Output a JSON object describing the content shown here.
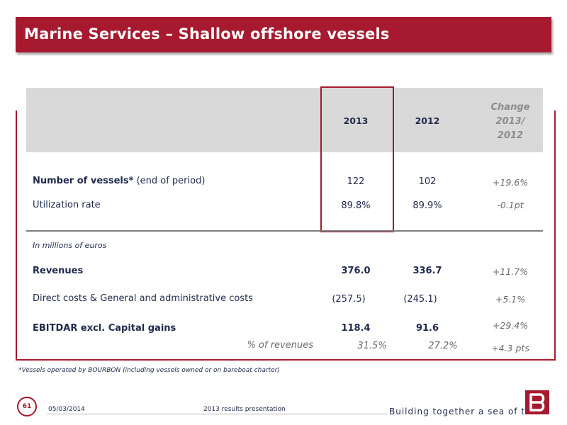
{
  "title": "Marine Services – Shallow offshore vessels",
  "table": {
    "header": {
      "col1": "2013",
      "col2": "2012",
      "change_lines": [
        "Change",
        "2013/",
        "2012"
      ]
    },
    "rows": [
      {
        "label": "Number of vessels*",
        "label_suffix": " (end of period)",
        "v2013": "122",
        "v2012": "102",
        "change": "+19.6%"
      },
      {
        "label": "Utilization rate",
        "v2013": "89.8%",
        "v2012": "89.9%",
        "change": "-0.1pt"
      }
    ],
    "unit_note": "In millions of euros",
    "financial_rows": [
      {
        "label": "Revenues",
        "v2013": "376.0",
        "v2012": "336.7",
        "change": "+11.7%"
      },
      {
        "label": "Direct costs & General and administrative costs",
        "v2013": "(257.5)",
        "v2012": "(245.1)",
        "change": "+5.1%"
      },
      {
        "label": "EBITDAR excl. Capital gains",
        "v2013": "118.4",
        "v2012": "91.6",
        "change": "+29.4%"
      },
      {
        "label": "% of revenues",
        "v2013": "31.5%",
        "v2012": "27.2%",
        "change": "+4.3 pts"
      }
    ]
  },
  "footnote": "*Vessels operated by BOURBON (including vessels owned or on bareboat charter)",
  "footer": {
    "page": "61",
    "date": "05/03/2014",
    "presentation": "2013 results presentation",
    "slogan": "Building together a sea of trust"
  },
  "colors": {
    "accent": "#a6192e",
    "text": "#1f2a4d",
    "muted": "#6b6b6b",
    "header_band": "#d9d9d9"
  },
  "icons": {
    "logo": "bourbon-b-logo"
  }
}
